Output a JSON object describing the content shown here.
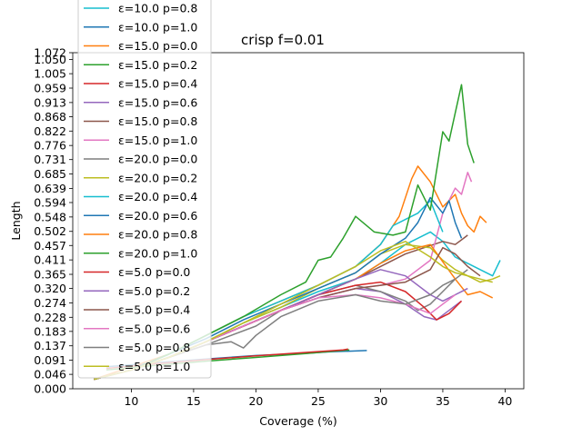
{
  "chart_data": {
    "type": "line",
    "title": "crisp f=0.01",
    "xlabel": "Coverage (%)",
    "ylabel": "Length",
    "xlim": [
      5.3,
      41.5
    ],
    "ylim": [
      0.0,
      1.072
    ],
    "x_ticks": [
      10,
      15,
      20,
      25,
      30,
      35,
      40
    ],
    "x_tick_labels": [
      "10",
      "15",
      "20",
      "25",
      "30",
      "35",
      "40"
    ],
    "y_ticks": [
      0.0,
      0.046,
      0.091,
      0.137,
      0.183,
      0.228,
      0.274,
      0.32,
      0.365,
      0.411,
      0.457,
      0.502,
      0.548,
      0.594,
      0.639,
      0.685,
      0.731,
      0.776,
      0.822,
      0.868,
      0.913,
      0.959,
      1.005,
      1.05,
      1.072
    ],
    "y_tick_labels": [
      "0.000",
      "0.046",
      "0.091",
      "0.137",
      "0.183",
      "0.228",
      "0.274",
      "0.320",
      "0.365",
      "0.411",
      "0.457",
      "0.502",
      "0.548",
      "0.594",
      "0.639",
      "0.685",
      "0.731",
      "0.776",
      "0.822",
      "0.868",
      "0.913",
      "0.959",
      "1.005",
      "1.050",
      "1.072"
    ],
    "grid": false,
    "legend_position": "upper-left",
    "series": [
      {
        "name": "ε=10.0 p=0.8",
        "color": "#17becf",
        "x": [
          7,
          10,
          13,
          16,
          19,
          22,
          25,
          28,
          30,
          32,
          34,
          35,
          36,
          37,
          38,
          39,
          39.6
        ],
        "y": [
          0.03,
          0.06,
          0.1,
          0.15,
          0.21,
          0.26,
          0.31,
          0.35,
          0.4,
          0.46,
          0.5,
          0.47,
          0.42,
          0.4,
          0.38,
          0.36,
          0.41
        ]
      },
      {
        "name": "ε=10.0 p=1.0",
        "color": "#1f77b4",
        "x": [
          8,
          12,
          16,
          20,
          24,
          26,
          27.5,
          28.9
        ],
        "y": [
          0.07,
          0.083,
          0.095,
          0.106,
          0.113,
          0.118,
          0.12,
          0.122
        ]
      },
      {
        "name": "ε=15.0 p=0.0",
        "color": "#ff7f0e",
        "x": [
          7,
          10,
          13,
          16,
          19,
          22,
          25,
          28,
          30,
          31.5,
          32.5,
          33,
          34,
          35,
          36,
          36.5,
          37,
          37.5,
          38,
          38.5
        ],
        "y": [
          0.03,
          0.07,
          0.11,
          0.17,
          0.23,
          0.28,
          0.33,
          0.39,
          0.46,
          0.55,
          0.67,
          0.71,
          0.66,
          0.58,
          0.62,
          0.56,
          0.52,
          0.5,
          0.55,
          0.53
        ]
      },
      {
        "name": "ε=15.0 p=0.2",
        "color": "#2ca02c",
        "x": [
          8,
          12,
          16,
          20,
          24,
          27.5
        ],
        "y": [
          0.06,
          0.075,
          0.088,
          0.1,
          0.112,
          0.124
        ]
      },
      {
        "name": "ε=15.0 p=0.4",
        "color": "#d62728",
        "x": [
          8,
          12,
          16,
          20,
          24,
          27,
          27.4
        ],
        "y": [
          0.065,
          0.08,
          0.093,
          0.105,
          0.116,
          0.124,
          0.127
        ]
      },
      {
        "name": "ε=15.0 p=0.6",
        "color": "#9467bd",
        "x": [
          7,
          10,
          13,
          16,
          19,
          22,
          25,
          28,
          30,
          32,
          33.5,
          34.5,
          35.5,
          36.5
        ],
        "y": [
          0.03,
          0.06,
          0.1,
          0.15,
          0.2,
          0.25,
          0.29,
          0.32,
          0.31,
          0.27,
          0.23,
          0.22,
          0.25,
          0.28
        ]
      },
      {
        "name": "ε=15.0 p=0.8",
        "color": "#8c564b",
        "x": [
          7,
          10,
          13,
          16,
          19,
          22,
          25,
          28,
          30,
          32,
          33.5,
          35,
          36,
          37
        ],
        "y": [
          0.03,
          0.06,
          0.1,
          0.15,
          0.2,
          0.25,
          0.3,
          0.35,
          0.39,
          0.43,
          0.45,
          0.47,
          0.46,
          0.49
        ]
      },
      {
        "name": "ε=15.0 p=1.0",
        "color": "#e377c2",
        "x": [
          7,
          10,
          13,
          16,
          19,
          22,
          25,
          28,
          30,
          32,
          34,
          35,
          36,
          36.5,
          37,
          37.3
        ],
        "y": [
          0.03,
          0.06,
          0.1,
          0.15,
          0.2,
          0.25,
          0.29,
          0.32,
          0.33,
          0.35,
          0.41,
          0.56,
          0.64,
          0.62,
          0.69,
          0.66
        ]
      },
      {
        "name": "ε=20.0 p=0.0",
        "color": "#7f7f7f",
        "x": [
          7,
          10,
          13,
          16,
          18,
          20,
          22,
          25,
          28,
          30,
          32,
          33,
          34,
          35,
          36,
          37
        ],
        "y": [
          0.03,
          0.06,
          0.1,
          0.14,
          0.17,
          0.2,
          0.25,
          0.3,
          0.33,
          0.31,
          0.28,
          0.25,
          0.27,
          0.31,
          0.35,
          0.38
        ]
      },
      {
        "name": "ε=20.0 p=0.2",
        "color": "#bcbd22",
        "x": [
          7,
          10,
          13,
          16,
          19,
          22,
          25,
          28,
          30,
          32,
          34,
          35,
          36,
          37,
          38,
          39,
          39.6
        ],
        "y": [
          0.03,
          0.06,
          0.1,
          0.15,
          0.21,
          0.26,
          0.32,
          0.37,
          0.43,
          0.46,
          0.45,
          0.41,
          0.38,
          0.36,
          0.34,
          0.35,
          0.36
        ]
      },
      {
        "name": "ε=20.0 p=0.4",
        "color": "#17becf",
        "x": [
          7,
          10,
          13,
          16,
          19,
          22,
          25,
          28,
          30,
          31,
          32,
          33,
          34,
          35
        ],
        "y": [
          0.03,
          0.06,
          0.11,
          0.17,
          0.23,
          0.28,
          0.33,
          0.39,
          0.46,
          0.52,
          0.54,
          0.56,
          0.6,
          0.5
        ]
      },
      {
        "name": "ε=20.0 p=0.6",
        "color": "#1f77b4",
        "x": [
          7,
          10,
          13,
          16,
          19,
          22,
          25,
          28,
          30,
          32,
          33,
          34,
          35,
          35.5,
          36,
          36.5
        ],
        "y": [
          0.03,
          0.06,
          0.11,
          0.16,
          0.22,
          0.27,
          0.32,
          0.37,
          0.43,
          0.48,
          0.53,
          0.61,
          0.56,
          0.6,
          0.53,
          0.48
        ]
      },
      {
        "name": "ε=20.0 p=0.8",
        "color": "#ff7f0e",
        "x": [
          7,
          10,
          13,
          16,
          19,
          22,
          25,
          28,
          30,
          32,
          34,
          36,
          37,
          38,
          39
        ],
        "y": [
          0.03,
          0.06,
          0.1,
          0.15,
          0.2,
          0.25,
          0.3,
          0.35,
          0.4,
          0.44,
          0.46,
          0.35,
          0.3,
          0.31,
          0.29
        ]
      },
      {
        "name": "ε=20.0 p=1.0",
        "color": "#2ca02c",
        "x": [
          7,
          10,
          13,
          16,
          19,
          22,
          24,
          25,
          26,
          27,
          28,
          29.5,
          31,
          32,
          33,
          34,
          35,
          35.5,
          36,
          36.5,
          37,
          37.5
        ],
        "y": [
          0.03,
          0.06,
          0.11,
          0.17,
          0.23,
          0.3,
          0.34,
          0.41,
          0.42,
          0.48,
          0.55,
          0.5,
          0.49,
          0.5,
          0.65,
          0.57,
          0.82,
          0.79,
          0.88,
          0.97,
          0.78,
          0.72
        ]
      },
      {
        "name": "ε=5.0 p=0.0",
        "color": "#d62728",
        "x": [
          7,
          10,
          13,
          16,
          19,
          22,
          25,
          28,
          30,
          32,
          33.5,
          34.5,
          35.5,
          36.5
        ],
        "y": [
          0.03,
          0.06,
          0.1,
          0.15,
          0.2,
          0.25,
          0.3,
          0.33,
          0.34,
          0.31,
          0.26,
          0.22,
          0.24,
          0.28
        ]
      },
      {
        "name": "ε=5.0 p=0.2",
        "color": "#9467bd",
        "x": [
          7,
          10,
          13,
          16,
          19,
          22,
          25,
          28,
          30,
          32,
          34,
          35,
          36,
          37
        ],
        "y": [
          0.03,
          0.06,
          0.1,
          0.15,
          0.2,
          0.25,
          0.3,
          0.35,
          0.38,
          0.36,
          0.3,
          0.28,
          0.3,
          0.32
        ]
      },
      {
        "name": "ε=5.0 p=0.4",
        "color": "#8c564b",
        "x": [
          7,
          10,
          13,
          16,
          19,
          22,
          25,
          28,
          30,
          32,
          34,
          35,
          36,
          37,
          38
        ],
        "y": [
          0.03,
          0.06,
          0.1,
          0.15,
          0.2,
          0.25,
          0.29,
          0.32,
          0.33,
          0.34,
          0.38,
          0.45,
          0.43,
          0.39,
          0.36
        ]
      },
      {
        "name": "ε=5.0 p=0.6",
        "color": "#e377c2",
        "x": [
          7,
          10,
          13,
          16,
          19,
          22,
          25,
          28,
          30,
          32,
          34,
          35,
          36
        ],
        "y": [
          0.03,
          0.06,
          0.1,
          0.15,
          0.2,
          0.25,
          0.29,
          0.3,
          0.29,
          0.27,
          0.24,
          0.27,
          0.3
        ]
      },
      {
        "name": "ε=5.0 p=0.8",
        "color": "#7f7f7f",
        "x": [
          7,
          10,
          13,
          16,
          18,
          19,
          20,
          22,
          25,
          28,
          30,
          32,
          34,
          35,
          36
        ],
        "y": [
          0.03,
          0.06,
          0.1,
          0.14,
          0.15,
          0.13,
          0.17,
          0.23,
          0.28,
          0.3,
          0.28,
          0.27,
          0.3,
          0.33,
          0.35
        ]
      },
      {
        "name": "ε=5.0 p=1.0",
        "color": "#bcbd22",
        "x": [
          7,
          10,
          13,
          16,
          19,
          22,
          25,
          28,
          30,
          32,
          34,
          35,
          36,
          37,
          38,
          39
        ],
        "y": [
          0.03,
          0.06,
          0.1,
          0.15,
          0.21,
          0.27,
          0.33,
          0.39,
          0.44,
          0.47,
          0.42,
          0.39,
          0.37,
          0.36,
          0.35,
          0.34
        ]
      }
    ]
  }
}
